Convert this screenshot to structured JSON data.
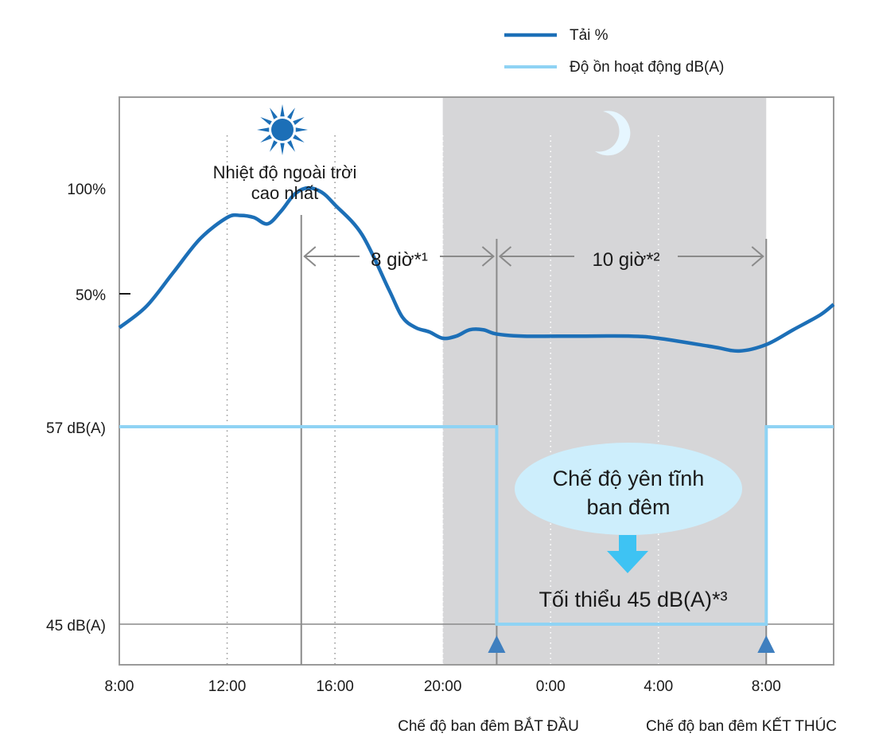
{
  "chart_data": {
    "type": "line",
    "legend": {
      "placement": "top-right",
      "entries": [
        {
          "label": "Tải %",
          "color": "#1c6fb7"
        },
        {
          "label": "Độ ồn hoạt động dB(A)",
          "color": "#8fd3f4"
        }
      ]
    },
    "x_tick_labels": [
      "8:00",
      "12:00",
      "16:00",
      "20:00",
      "0:00",
      "4:00",
      "8:00"
    ],
    "x_range_hours": [
      8,
      34.5
    ],
    "load_axis": {
      "tick_labels": [
        "100%",
        "50%"
      ]
    },
    "noise_axis": {
      "tick_labels": [
        "57 dB(A)",
        "45 dB(A)"
      ]
    },
    "series": [
      {
        "name": "Tải %",
        "color": "#1c6fb7",
        "unit": "%",
        "points": [
          [
            8.0,
            34
          ],
          [
            9.0,
            44
          ],
          [
            10.0,
            60
          ],
          [
            11.0,
            76
          ],
          [
            12.0,
            86
          ],
          [
            12.5,
            87
          ],
          [
            13.0,
            86
          ],
          [
            13.5,
            83
          ],
          [
            14.0,
            89
          ],
          [
            14.5,
            97
          ],
          [
            15.0,
            100
          ],
          [
            15.5,
            98
          ],
          [
            16.0,
            92
          ],
          [
            17.0,
            78
          ],
          [
            18.0,
            52
          ],
          [
            18.5,
            39
          ],
          [
            19.0,
            34
          ],
          [
            19.5,
            32
          ],
          [
            20.0,
            29
          ],
          [
            20.5,
            30
          ],
          [
            21.0,
            33
          ],
          [
            21.5,
            33
          ],
          [
            22.0,
            31
          ],
          [
            23.0,
            30
          ],
          [
            25.0,
            30
          ],
          [
            27.0,
            30
          ],
          [
            28.0,
            29
          ],
          [
            30.0,
            25
          ],
          [
            31.0,
            23
          ],
          [
            32.0,
            26
          ],
          [
            33.0,
            33
          ],
          [
            34.0,
            40
          ],
          [
            34.5,
            45
          ]
        ]
      },
      {
        "name": "Độ ồn hoạt động dB(A)",
        "color": "#8fd3f4",
        "unit": "dB(A)",
        "points": [
          [
            8.0,
            57
          ],
          [
            22.0,
            57
          ],
          [
            22.0,
            45
          ],
          [
            32.0,
            45
          ],
          [
            32.0,
            57
          ],
          [
            34.5,
            57
          ]
        ]
      }
    ],
    "night_band_hours": [
      20,
      32
    ],
    "night_mode_start_hours": 22,
    "night_mode_end_hours": 32,
    "peak_marker_hours": 14.75,
    "annotations": {
      "peak_label_line1": "Nhiệt độ ngoài trời",
      "peak_label_line2": "cao nhất",
      "span1_label": "8 giờ*¹",
      "span2_label": "10 giờ*²",
      "quiet_mode_line1": "Chế độ yên tĩnh",
      "quiet_mode_line2": "ban đêm",
      "minimum_label": "Tối thiểu 45 dB(A)*³",
      "night_start_label": "Chế độ ban đêm BẮT ĐẦU",
      "night_end_label": "Chế độ ban đêm KẾT THÚC"
    },
    "icons": [
      "sun-icon",
      "moon-icon",
      "down-arrow-icon",
      "up-triangle-icon"
    ]
  }
}
